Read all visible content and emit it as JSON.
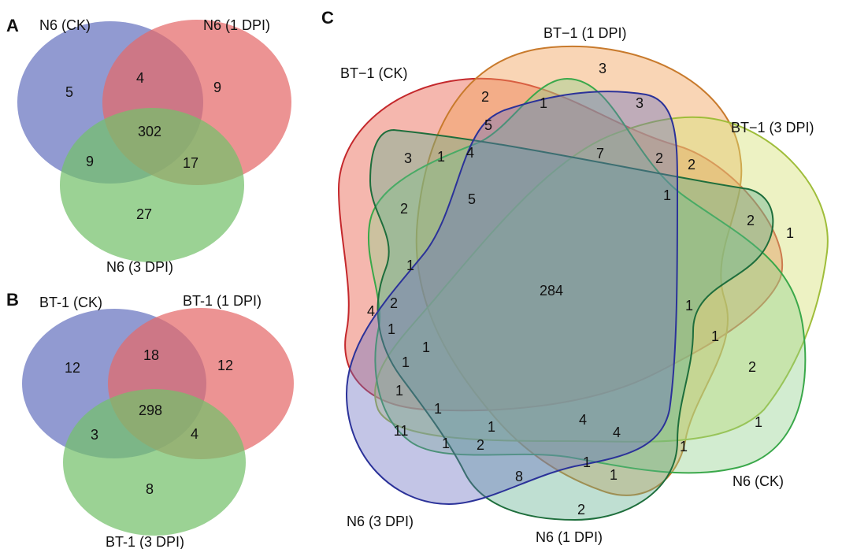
{
  "panels": {
    "A": {
      "letter": "A",
      "sets": [
        "N6 (CK)",
        "N6 (1 DPI)",
        "N6 (3 DPI)"
      ],
      "colors": [
        "#6673bf",
        "#e56a6a",
        "#74c06b"
      ],
      "counts": {
        "only_ck": "5",
        "ck_1dpi": "4",
        "only_1dpi": "9",
        "all": "302",
        "ck_3dpi": "9",
        "1dpi_3dpi": "17",
        "only_3dpi": "27"
      }
    },
    "B": {
      "letter": "B",
      "sets": [
        "BT-1 (CK)",
        "BT-1 (1 DPI)",
        "BT-1 (3 DPI)"
      ],
      "colors": [
        "#6673bf",
        "#e56a6a",
        "#74c06b"
      ],
      "counts": {
        "only_ck": "12",
        "ck_1dpi": "18",
        "only_1dpi": "12",
        "all": "298",
        "ck_3dpi": "3",
        "1dpi_3dpi": "4",
        "only_3dpi": "8"
      }
    },
    "C": {
      "letter": "C",
      "sets": [
        "BT−1 (CK)",
        "BT−1 (1 DPI)",
        "BT−1 (3 DPI)",
        "N6 (CK)",
        "N6 (1 DPI)",
        "N6 (3 DPI)"
      ],
      "colors": [
        "#e8604c",
        "#f2a15b",
        "#d8e27a",
        "#8fcf8a",
        "#5fae8e",
        "#6a6fc0"
      ],
      "center": "284",
      "counts": [
        "3",
        "2",
        "1",
        "3",
        "5",
        "4",
        "1",
        "3",
        "7",
        "2",
        "2",
        "1",
        "5",
        "2",
        "1",
        "2",
        "1",
        "4",
        "2",
        "1",
        "1",
        "1",
        "1",
        "1",
        "1",
        "1",
        "2",
        "1",
        "11",
        "1",
        "1",
        "2",
        "4",
        "4",
        "8",
        "1",
        "1",
        "2",
        "1",
        "1"
      ]
    }
  }
}
